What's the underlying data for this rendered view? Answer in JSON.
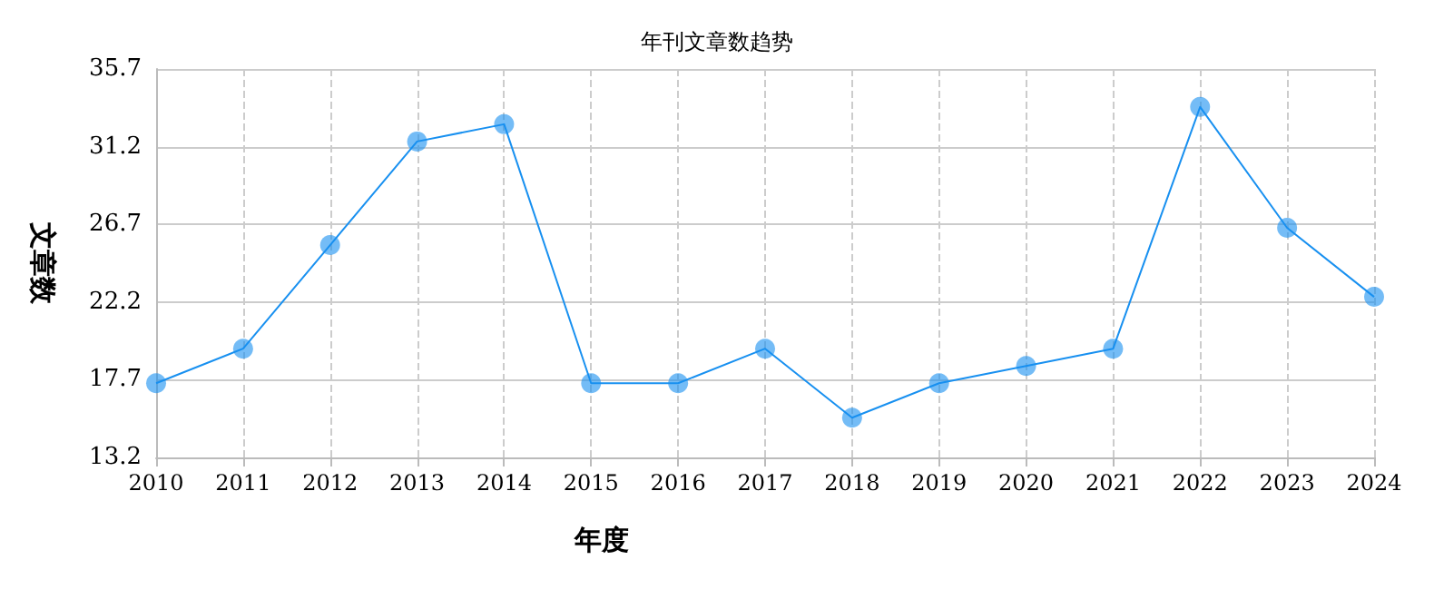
{
  "chart_data": {
    "type": "line",
    "title": "年刊文章数趋势",
    "xlabel": "年度",
    "ylabel": "文章数",
    "categories": [
      "2010",
      "2011",
      "2012",
      "2013",
      "2014",
      "2015",
      "2016",
      "2017",
      "2018",
      "2019",
      "2020",
      "2021",
      "2022",
      "2023",
      "2024"
    ],
    "series": [
      {
        "color": "#1890f0",
        "values": [
          17.5,
          19.5,
          25.5,
          31.5,
          32.5,
          17.5,
          17.5,
          19.5,
          15.5,
          17.5,
          18.5,
          19.5,
          33.5,
          26.5,
          22.5
        ]
      }
    ],
    "ylim": [
      13.2,
      35.7
    ],
    "yticks": [
      13.2,
      17.7,
      22.2,
      26.7,
      31.2,
      35.7
    ],
    "grid": true,
    "marker": "circle",
    "line_style": "solid"
  }
}
